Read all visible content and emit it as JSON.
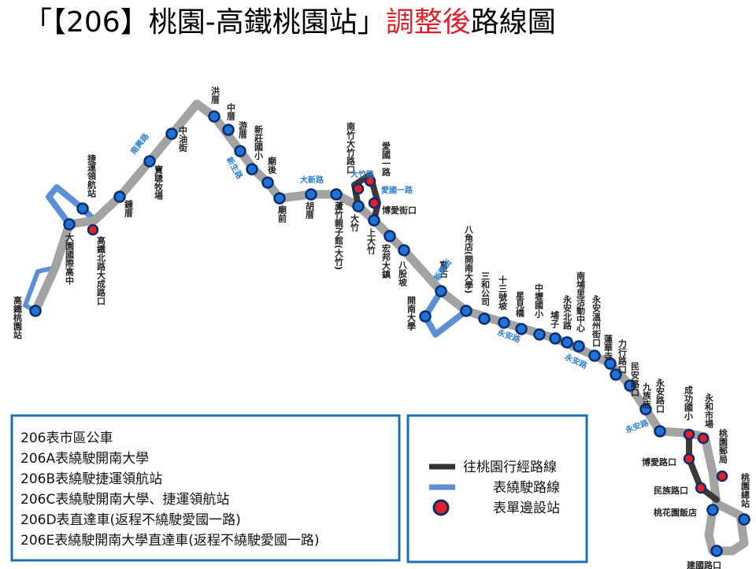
{
  "title": {
    "prefix": "「【206】桃園-高鐵桃園站」",
    "highlight": "調整後",
    "suffix": "路線圖"
  },
  "stations": [
    "高鐵桃園站",
    "大園國際高中",
    "捷運領航站",
    "鍾厝",
    "寶聰牧場",
    "中油街",
    "洪厝",
    "中厝",
    "游厝",
    "新莊國小",
    "廟後",
    "廟前",
    "胡厝",
    "蘆竹親子館(大竹)",
    "大竹",
    "上大竹",
    "宏邦大鎮",
    "八股坡",
    "開南大學",
    "富古",
    "八角店(開南大學)",
    "三和公司",
    "十三號坡",
    "星見橋",
    "中壢國小",
    "埔子",
    "永安北路",
    "南埔里活動中心",
    "永安溫州街口",
    "蓮華寺",
    "力行路口",
    "民安路口",
    "九族店",
    "永安路口",
    "桃花園飯店",
    "桃園總站",
    "建國路口"
  ],
  "one_way_stops": [
    "高鐵北路大成路口",
    "南竹大竹路口",
    "愛國一路",
    "博愛街口",
    "成功國小",
    "永和市場",
    "桃園郵局",
    "博愛路口",
    "民族路口"
  ],
  "roads": [
    "南興路",
    "新生路",
    "大新路",
    "大竹路",
    "新興街",
    "永安路",
    "永安路",
    "永安路",
    "愛國一路"
  ],
  "legend_routes": [
    "206表市區公車",
    "206A表繞駛開南大學",
    "206B表繞駛捷運領航站",
    "206C表繞駛開南大學、捷運領航站",
    "206D表直達車(返程不繞駛愛國一路)",
    "206E表繞駛開南大學直達車(返程不繞駛愛國一路)"
  ],
  "legend_symbols": [
    "往桃園行經路線",
    "表繞駛路線",
    "表單邊設站"
  ]
}
